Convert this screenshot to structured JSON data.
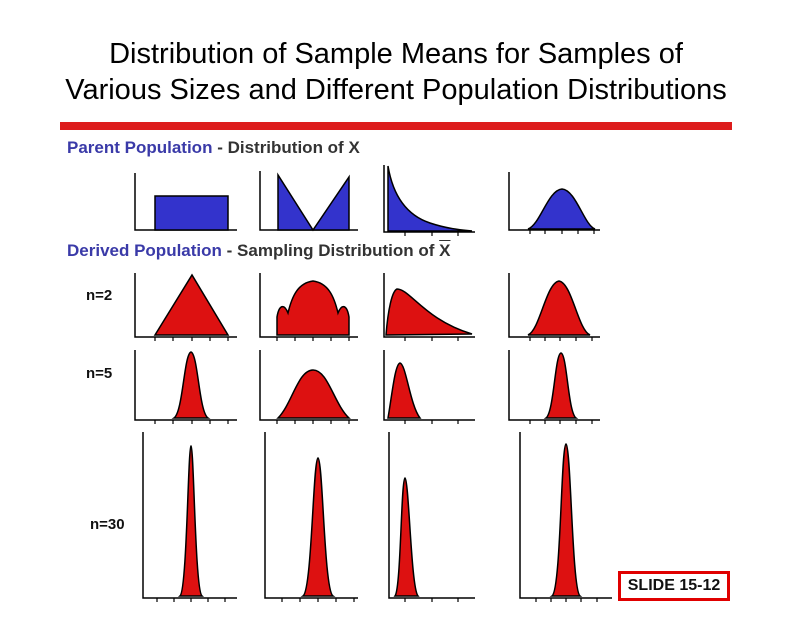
{
  "title": {
    "line1": "Distribution of Sample Means for Samples of",
    "line2": "Various Sizes and Different Population Distributions"
  },
  "parent_section": {
    "label": "Parent Population",
    "suffix": " - Distribution of X"
  },
  "derived_section": {
    "label": "Derived Population",
    "suffix": " - Sampling Distribution of ",
    "xbar": "X"
  },
  "sample_size_labels": [
    "n=2",
    "n=5",
    "n=30"
  ],
  "slide_label": "SLIDE 15-12",
  "colors": {
    "parent_fill": "#3333cc",
    "derived_fill": "#dd1111",
    "accent_rule": "#dd1c1c",
    "section_label": "#3a3aa8"
  },
  "chart_data": {
    "type": "diagram",
    "columns": [
      "uniform",
      "v-shaped",
      "exponential",
      "normal"
    ],
    "rows": [
      "parent",
      "n=2",
      "n=5",
      "n=30"
    ]
  }
}
